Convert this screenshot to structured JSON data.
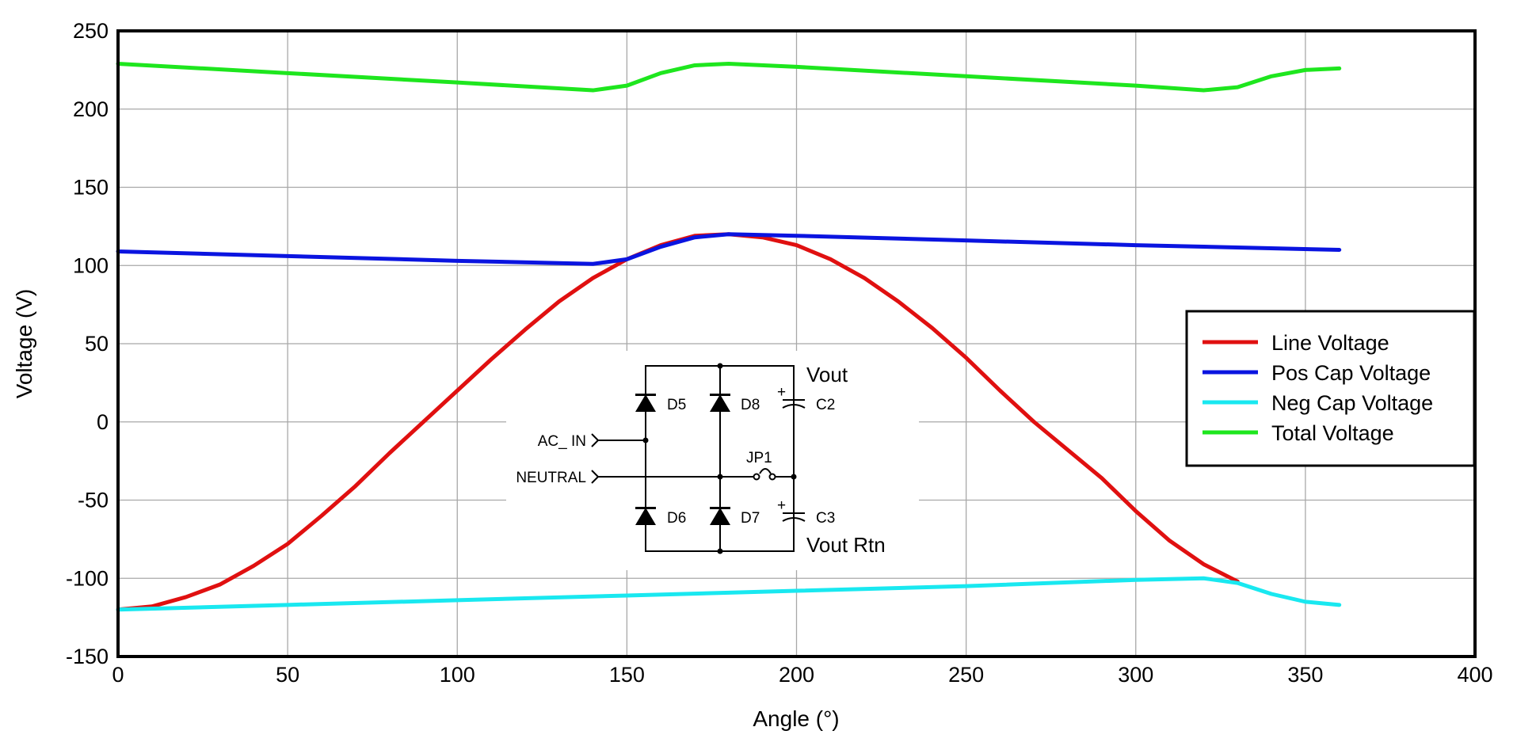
{
  "chart_data": {
    "type": "line",
    "title": "",
    "xlabel": "Angle (°)",
    "ylabel": "Voltage (V)",
    "xlim": [
      0,
      400
    ],
    "ylim": [
      -150,
      250
    ],
    "xticks": [
      0,
      50,
      100,
      150,
      200,
      250,
      300,
      350,
      400
    ],
    "yticks": [
      -150,
      -100,
      -50,
      0,
      50,
      100,
      150,
      200,
      250
    ],
    "grid": true,
    "legend_position": "right",
    "series": [
      {
        "name": "Line Voltage",
        "color": "#e01010",
        "x": [
          0,
          10,
          20,
          30,
          40,
          50,
          60,
          70,
          80,
          90,
          100,
          110,
          120,
          130,
          140,
          150,
          160,
          170,
          180,
          190,
          200,
          210,
          220,
          230,
          240,
          250,
          260,
          270,
          280,
          290,
          300,
          310,
          320,
          330
        ],
        "y": [
          -120,
          -118,
          -112,
          -104,
          -92,
          -78,
          -60,
          -41,
          -20,
          0,
          20,
          40,
          59,
          77,
          92,
          104,
          113,
          119,
          120,
          118,
          113,
          104,
          92,
          77,
          60,
          41,
          20,
          0,
          -18,
          -36,
          -57,
          -76,
          -91,
          -102
        ]
      },
      {
        "name": "Pos Cap Voltage",
        "color": "#0a14e0",
        "x": [
          0,
          50,
          100,
          140,
          150,
          160,
          170,
          180,
          200,
          250,
          300,
          320,
          360
        ],
        "y": [
          109,
          106,
          103,
          101,
          104,
          112,
          118,
          120,
          119,
          116,
          113,
          112,
          110
        ]
      },
      {
        "name": "Neg Cap Voltage",
        "color": "#19e8f0",
        "x": [
          0,
          50,
          100,
          150,
          200,
          250,
          300,
          320,
          330,
          340,
          350,
          360
        ],
        "y": [
          -120,
          -117,
          -114,
          -111,
          -108,
          -105,
          -101,
          -100,
          -103,
          -110,
          -115,
          -117
        ]
      },
      {
        "name": "Total Voltage",
        "color": "#1ee61e",
        "x": [
          0,
          50,
          100,
          140,
          150,
          160,
          170,
          180,
          200,
          250,
          300,
          320,
          330,
          340,
          350,
          360
        ],
        "y": [
          229,
          223,
          217,
          212,
          215,
          223,
          228,
          229,
          227,
          221,
          215,
          212,
          214,
          221,
          225,
          226
        ]
      }
    ]
  },
  "schematic": {
    "labels": {
      "ac_in": "AC_ IN",
      "neutral": "NEUTRAL",
      "d5": "D5",
      "d8": "D8",
      "d6": "D6",
      "d7": "D7",
      "c2": "C2",
      "c3": "C3",
      "plus": "+",
      "jp1": "JP1",
      "vout": "Vout",
      "vout_rtn": "Vout Rtn"
    }
  }
}
